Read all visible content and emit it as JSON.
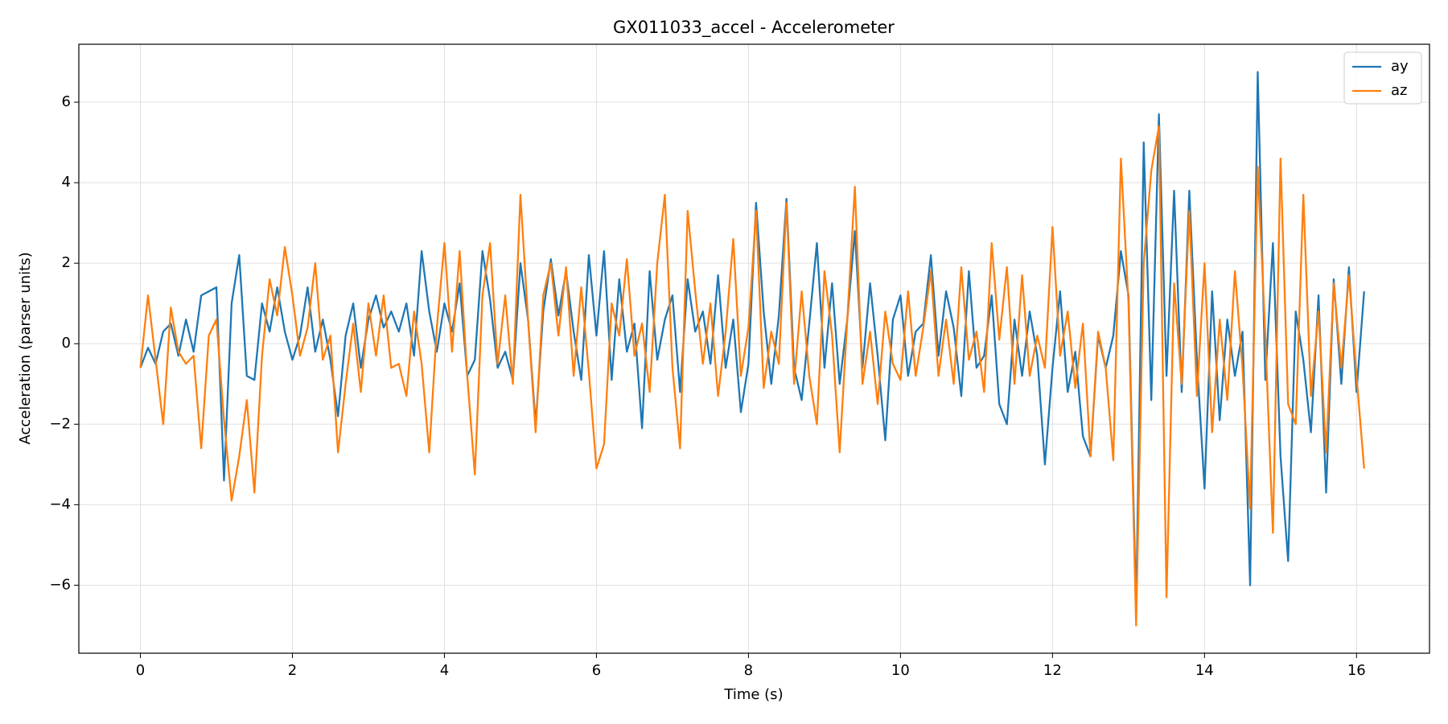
{
  "chart_data": {
    "type": "line",
    "title": "GX011033_accel - Accelerometer",
    "x_label": "Time (s)",
    "y_label": "Acceleration (parser units)",
    "x": [
      0,
      0.1,
      0.2,
      0.3,
      0.4,
      0.5,
      0.6,
      0.7,
      0.8,
      0.9,
      1,
      1.1,
      1.2,
      1.3,
      1.4,
      1.5,
      1.6,
      1.7,
      1.8,
      1.9,
      2,
      2.1,
      2.2,
      2.3,
      2.4,
      2.5,
      2.6,
      2.7,
      2.8,
      2.9,
      3,
      3.1,
      3.2,
      3.3,
      3.4,
      3.5,
      3.6,
      3.7,
      3.8,
      3.9,
      4,
      4.1,
      4.2,
      4.3,
      4.4,
      4.5,
      4.6,
      4.7,
      4.8,
      4.9,
      5,
      5.1,
      5.2,
      5.3,
      5.4,
      5.5,
      5.6,
      5.7,
      5.8,
      5.9,
      6,
      6.1,
      6.2,
      6.3,
      6.4,
      6.5,
      6.6,
      6.7,
      6.8,
      6.9,
      7,
      7.1,
      7.2,
      7.3,
      7.4,
      7.5,
      7.6,
      7.7,
      7.8,
      7.9,
      8,
      8.1,
      8.2,
      8.3,
      8.4,
      8.5,
      8.6,
      8.7,
      8.8,
      8.9,
      9,
      9.1,
      9.2,
      9.3,
      9.4,
      9.5,
      9.6,
      9.7,
      9.8,
      9.9,
      10,
      10.1,
      10.2,
      10.3,
      10.4,
      10.5,
      10.6,
      10.7,
      10.8,
      10.9,
      11,
      11.1,
      11.2,
      11.3,
      11.4,
      11.5,
      11.6,
      11.7,
      11.8,
      11.9,
      12,
      12.1,
      12.2,
      12.3,
      12.4,
      12.5,
      12.6,
      12.7,
      12.8,
      12.9,
      13,
      13.1,
      13.2,
      13.3,
      13.4,
      13.5,
      13.6,
      13.7,
      13.8,
      13.9,
      14,
      14.1,
      14.2,
      14.3,
      14.4,
      14.5,
      14.6,
      14.7,
      14.8,
      14.9,
      15,
      15.1,
      15.2,
      15.3,
      15.4,
      15.5,
      15.6,
      15.7,
      15.8,
      15.9,
      16,
      16.1
    ],
    "series": [
      {
        "name": "ay",
        "color": "#1f77b4",
        "values": [
          -0.6,
          -0.1,
          -0.5,
          0.3,
          0.5,
          -0.3,
          0.6,
          -0.2,
          1.2,
          1.3,
          1.4,
          -3.4,
          1.0,
          2.2,
          -0.8,
          -0.9,
          1.0,
          0.3,
          1.4,
          0.3,
          -0.4,
          0.2,
          1.4,
          -0.2,
          0.6,
          -0.4,
          -1.8,
          0.2,
          1.0,
          -0.6,
          0.6,
          1.2,
          0.4,
          0.8,
          0.3,
          1.0,
          -0.3,
          2.3,
          0.8,
          -0.2,
          1.0,
          0.3,
          1.5,
          -0.8,
          -0.4,
          2.3,
          1.1,
          -0.6,
          -0.2,
          -0.9,
          2.0,
          0.6,
          -2.0,
          0.8,
          2.1,
          0.7,
          1.8,
          0.3,
          -0.9,
          2.2,
          0.2,
          2.3,
          -0.9,
          1.6,
          -0.2,
          0.5,
          -2.1,
          1.8,
          -0.4,
          0.6,
          1.2,
          -1.2,
          1.6,
          0.3,
          0.8,
          -0.5,
          1.7,
          -0.6,
          0.6,
          -1.7,
          -0.5,
          3.5,
          0.8,
          -1.0,
          0.7,
          3.6,
          -0.6,
          -1.4,
          0.5,
          2.5,
          -0.6,
          1.5,
          -1.0,
          0.6,
          2.8,
          -0.6,
          1.5,
          -0.3,
          -2.4,
          0.6,
          1.2,
          -0.8,
          0.3,
          0.5,
          2.2,
          -0.3,
          1.3,
          0.4,
          -1.3,
          1.8,
          -0.6,
          -0.3,
          1.2,
          -1.5,
          -2.0,
          0.6,
          -0.8,
          0.8,
          -0.3,
          -3.0,
          -0.6,
          1.3,
          -1.2,
          -0.2,
          -2.3,
          -2.8,
          0.2,
          -0.6,
          0.2,
          2.3,
          1.2,
          -6.6,
          5.0,
          -1.4,
          5.7,
          -0.8,
          3.8,
          -1.2,
          3.8,
          -0.4,
          -3.6,
          1.3,
          -1.9,
          0.6,
          -0.8,
          0.3,
          -6.0,
          6.75,
          -0.9,
          2.5,
          -2.8,
          -5.4,
          0.8,
          -0.4,
          -2.2,
          1.2,
          -3.7,
          1.6,
          -1.0,
          1.9,
          -1.2,
          1.3
        ]
      },
      {
        "name": "az",
        "color": "#ff7f0e",
        "values": [
          -0.6,
          1.2,
          -0.4,
          -2.0,
          0.9,
          -0.2,
          -0.5,
          -0.3,
          -2.6,
          0.2,
          0.6,
          -1.9,
          -3.9,
          -2.8,
          -1.4,
          -3.7,
          -0.3,
          1.6,
          0.7,
          2.4,
          1.2,
          -0.3,
          0.4,
          2.0,
          -0.4,
          0.2,
          -2.7,
          -1.0,
          0.5,
          -1.2,
          1.0,
          -0.3,
          1.2,
          -0.6,
          -0.5,
          -1.3,
          0.8,
          -0.5,
          -2.7,
          0.4,
          2.5,
          -0.2,
          2.3,
          -0.8,
          -3.25,
          1.2,
          2.5,
          -0.5,
          1.2,
          -1.0,
          3.7,
          0.6,
          -2.2,
          1.2,
          2.0,
          0.2,
          1.9,
          -0.8,
          1.4,
          -0.7,
          -3.1,
          -2.5,
          1.0,
          0.2,
          2.1,
          -0.3,
          0.5,
          -1.2,
          2.0,
          3.7,
          -0.6,
          -2.6,
          3.3,
          1.3,
          -0.5,
          1.0,
          -1.3,
          0.3,
          2.6,
          -0.8,
          0.4,
          3.3,
          -1.1,
          0.3,
          -0.5,
          3.5,
          -1.0,
          1.3,
          -0.8,
          -2.0,
          1.8,
          0.2,
          -2.7,
          0.6,
          3.9,
          -1.0,
          0.3,
          -1.5,
          0.8,
          -0.5,
          -0.9,
          1.3,
          -0.8,
          0.4,
          1.8,
          -0.8,
          0.6,
          -1.0,
          1.9,
          -0.4,
          0.3,
          -1.2,
          2.5,
          0.1,
          1.9,
          -1.0,
          1.7,
          -0.8,
          0.2,
          -0.6,
          2.9,
          -0.3,
          0.8,
          -1.1,
          0.5,
          -2.8,
          0.3,
          -0.6,
          -2.9,
          4.6,
          1.0,
          -7.0,
          2.0,
          4.3,
          5.4,
          -6.3,
          1.5,
          -1.0,
          3.3,
          -1.3,
          2.0,
          -2.2,
          0.6,
          -1.4,
          1.8,
          -0.6,
          -4.1,
          4.4,
          0.2,
          -4.7,
          4.6,
          -1.5,
          -2.0,
          3.7,
          -1.3,
          0.8,
          -2.7,
          1.5,
          -0.6,
          1.7,
          -0.8,
          -3.1
        ]
      }
    ],
    "xlim": [
      -0.81,
      16.96
    ],
    "ylim": [
      -7.69,
      7.44
    ],
    "xticks": [
      0,
      2,
      4,
      6,
      8,
      10,
      12,
      14,
      16
    ],
    "yticks": [
      {
        "value": -6,
        "label": "−6"
      },
      {
        "value": -4,
        "label": "−4"
      },
      {
        "value": -2,
        "label": "−2"
      },
      0,
      2,
      4,
      6
    ],
    "grid": true,
    "legend": "upper right"
  }
}
